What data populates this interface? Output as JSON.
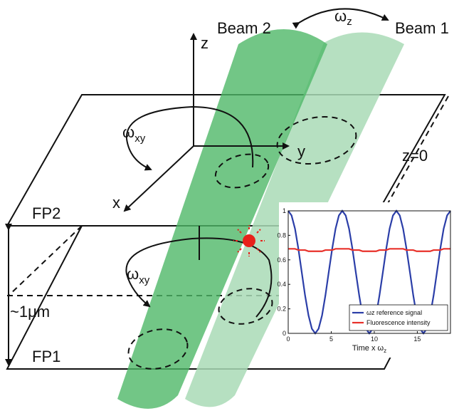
{
  "labels": {
    "beam2": "Beam 2",
    "beam1": "Beam 1",
    "omega_z": {
      "symbol": "ω",
      "sub": "z"
    },
    "z_axis": "z",
    "y_axis": "y",
    "x_axis": "x",
    "omega_xy_top": {
      "symbol": "ω",
      "sub": "xy"
    },
    "omega_xy_bottom": {
      "symbol": "ω",
      "sub": "xy"
    },
    "z0": "z=0",
    "fp2": "FP2",
    "fp1": "FP1",
    "thickness": "~1μm"
  },
  "chart_data": {
    "type": "line",
    "xlabel": "Time x ω",
    "xlabel_sub": "z",
    "x": [
      0,
      0.39,
      0.79,
      1.18,
      1.57,
      1.96,
      2.36,
      2.75,
      3.14,
      3.53,
      3.93,
      4.32,
      4.71,
      5.11,
      5.5,
      5.89,
      6.28,
      6.68,
      7.07,
      7.46,
      7.85,
      8.25,
      8.64,
      9.03,
      9.42,
      9.82,
      10.21,
      10.6,
      11,
      11.39,
      11.78,
      12.17,
      12.57,
      12.96,
      13.35,
      13.74,
      14.14,
      14.53,
      14.92,
      15.32,
      15.71,
      16.1,
      16.49,
      16.89,
      17.28,
      17.67,
      18.06,
      18.46,
      18.85
    ],
    "series": [
      {
        "name": "ωz reference signal",
        "color": "#2b3ea8",
        "values": [
          1,
          0.962,
          0.854,
          0.691,
          0.5,
          0.309,
          0.146,
          0.038,
          0,
          0.038,
          0.146,
          0.309,
          0.5,
          0.691,
          0.854,
          0.962,
          1,
          0.962,
          0.854,
          0.691,
          0.5,
          0.309,
          0.146,
          0.038,
          0,
          0.038,
          0.146,
          0.309,
          0.5,
          0.691,
          0.854,
          0.962,
          1,
          0.962,
          0.854,
          0.691,
          0.5,
          0.309,
          0.146,
          0.038,
          0,
          0.038,
          0.146,
          0.309,
          0.5,
          0.691,
          0.854,
          0.962,
          1
        ]
      },
      {
        "name": "Fluorescence intensity",
        "color": "#e8312a",
        "values": [
          0.69,
          0.69,
          0.69,
          0.68,
          0.68,
          0.68,
          0.67,
          0.67,
          0.67,
          0.67,
          0.67,
          0.68,
          0.68,
          0.68,
          0.69,
          0.69,
          0.69,
          0.69,
          0.69,
          0.68,
          0.68,
          0.68,
          0.67,
          0.67,
          0.67,
          0.67,
          0.67,
          0.68,
          0.68,
          0.68,
          0.69,
          0.69,
          0.69,
          0.69,
          0.69,
          0.68,
          0.68,
          0.68,
          0.67,
          0.67,
          0.67,
          0.67,
          0.67,
          0.68,
          0.68,
          0.68,
          0.69,
          0.69,
          0.69
        ]
      }
    ],
    "xlim": [
      0,
      18.85
    ],
    "ylim": [
      0,
      1
    ],
    "xticks": [
      0,
      5,
      10,
      15
    ],
    "yticks": [
      0,
      0.2,
      0.4,
      0.6,
      0.8,
      1
    ],
    "legend": "lower right"
  }
}
